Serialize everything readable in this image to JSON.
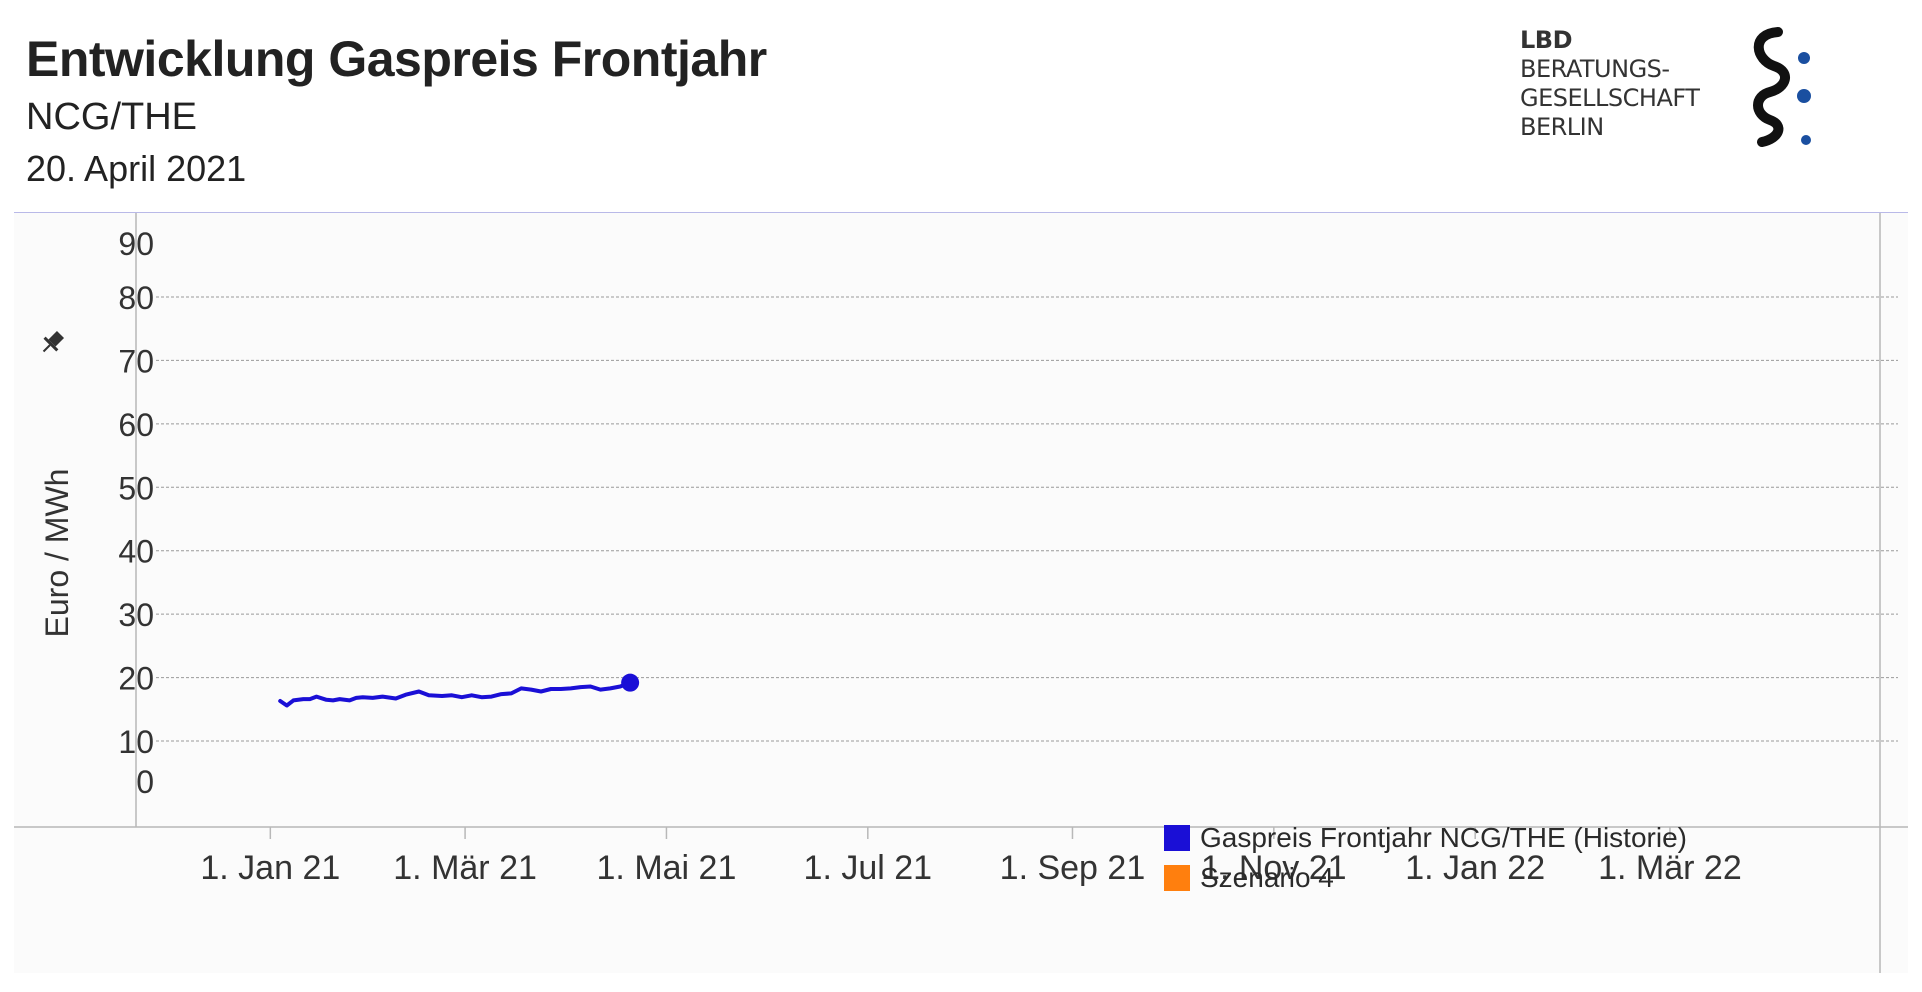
{
  "header": {
    "title": "Entwicklung Gaspreis Frontjahr",
    "subtitle": "NCG/THE",
    "date": "20. April 2021"
  },
  "logo": {
    "line1": "LBD",
    "line2": "BERATUNGS-",
    "line3": "GESELLSCHAFT",
    "line4": "BERLIN",
    "mark_color": "#111111",
    "dot_color": "#1a4fa0"
  },
  "colors": {
    "history": "#1a0fd6",
    "scenario": "#ff7f0e",
    "grid": "#9a9a9a",
    "axis": "#b8b8b8",
    "text": "#333333",
    "pin_icon": "#333333"
  },
  "chart_data": {
    "type": "line",
    "title": "Entwicklung Gaspreis Frontjahr",
    "ylabel": "Euro / MWh",
    "xlabel": "",
    "ylim": [
      0,
      90
    ],
    "yticks": [
      0,
      10,
      20,
      30,
      40,
      50,
      60,
      70,
      80,
      90
    ],
    "grid": true,
    "legend_position": "bottom-right",
    "xlim": [
      "2020-12-01",
      "2022-04-30"
    ],
    "xticks": [
      {
        "date": "2021-01-01",
        "label": "1. Jan 21"
      },
      {
        "date": "2021-03-01",
        "label": "1. Mär 21"
      },
      {
        "date": "2021-05-01",
        "label": "1. Mai 21"
      },
      {
        "date": "2021-07-01",
        "label": "1. Jul 21"
      },
      {
        "date": "2021-09-01",
        "label": "1. Sep 21"
      },
      {
        "date": "2021-11-01",
        "label": "1. Nov 21"
      },
      {
        "date": "2022-01-01",
        "label": "1. Jan 22"
      },
      {
        "date": "2022-03-01",
        "label": "1. Mär 22"
      }
    ],
    "series": [
      {
        "name": "Gaspreis Frontjahr NCG/THE (Historie)",
        "color": "#1a0fd6",
        "x": [
          "2021-01-04",
          "2021-01-06",
          "2021-01-08",
          "2021-01-11",
          "2021-01-13",
          "2021-01-15",
          "2021-01-18",
          "2021-01-20",
          "2021-01-22",
          "2021-01-25",
          "2021-01-27",
          "2021-01-29",
          "2021-02-01",
          "2021-02-04",
          "2021-02-08",
          "2021-02-11",
          "2021-02-15",
          "2021-02-18",
          "2021-02-22",
          "2021-02-25",
          "2021-02-28",
          "2021-03-03",
          "2021-03-06",
          "2021-03-09",
          "2021-03-12",
          "2021-03-15",
          "2021-03-18",
          "2021-03-21",
          "2021-03-24",
          "2021-03-27",
          "2021-03-30",
          "2021-04-02",
          "2021-04-05",
          "2021-04-08",
          "2021-04-11",
          "2021-04-14",
          "2021-04-17",
          "2021-04-20"
        ],
        "y": [
          16.3,
          15.6,
          16.4,
          16.6,
          16.6,
          17.0,
          16.5,
          16.4,
          16.6,
          16.4,
          16.8,
          16.9,
          16.8,
          17.0,
          16.7,
          17.3,
          17.8,
          17.2,
          17.1,
          17.2,
          16.9,
          17.2,
          16.9,
          17.0,
          17.4,
          17.5,
          18.3,
          18.1,
          17.8,
          18.2,
          18.2,
          18.3,
          18.5,
          18.6,
          18.1,
          18.3,
          18.6,
          19.2
        ]
      },
      {
        "name": "Szenario 4",
        "color": "#ff7f0e",
        "x": [],
        "y": []
      }
    ]
  },
  "legend": {
    "items": [
      {
        "label": "Gaspreis Frontjahr NCG/THE (Historie)",
        "color": "#1a0fd6"
      },
      {
        "label": "Szenario 4",
        "color": "#ff7f0e"
      }
    ]
  }
}
